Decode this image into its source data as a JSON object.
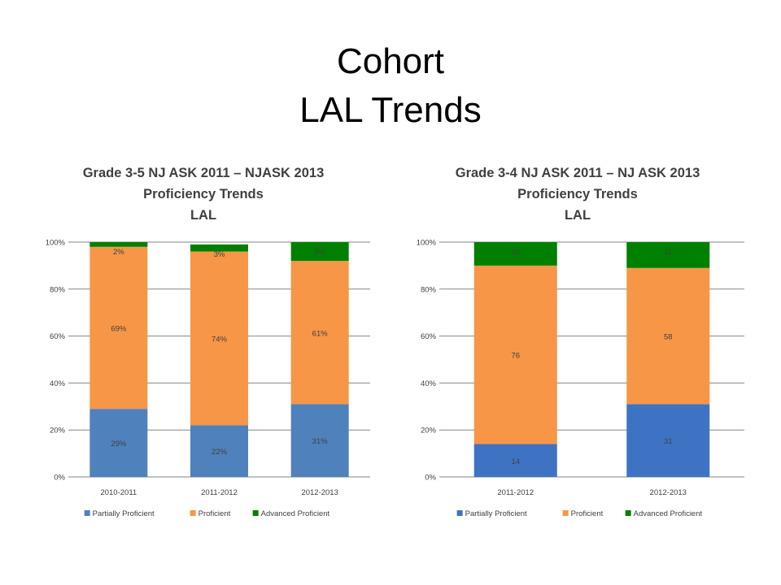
{
  "slide": {
    "title_line1": "Cohort",
    "title_line2": "LAL Trends"
  },
  "colors": {
    "partially_proficient": "#4F81BD",
    "partially_proficient_dark": "#3E73C4",
    "proficient": "#F79646",
    "advanced_proficient": "#008000",
    "gridline": "#868686",
    "text": "#404040"
  },
  "chart_data": [
    {
      "type": "bar",
      "stacked": true,
      "title_lines": [
        "Grade 3-5 NJ ASK 2011 – NJASK 2013",
        "Proficiency Trends",
        "LAL"
      ],
      "categories": [
        "2010-2011",
        "2011-2012",
        "2012-2013"
      ],
      "series": [
        {
          "name": "Partially Proficient",
          "values": [
            29,
            22,
            31
          ],
          "labels": [
            "29%",
            "22%",
            "31%"
          ]
        },
        {
          "name": "Proficient",
          "values": [
            69,
            74,
            61
          ],
          "labels": [
            "69%",
            "74%",
            "61%"
          ]
        },
        {
          "name": "Advanced Proficient",
          "values": [
            2,
            3,
            8
          ],
          "labels": [
            "2%",
            "3%",
            "8%"
          ]
        }
      ],
      "ylim": [
        0,
        100
      ],
      "yticks": [
        "0%",
        "20%",
        "40%",
        "60%",
        "80%",
        "100%"
      ],
      "grid": true,
      "legend_position": "bottom"
    },
    {
      "type": "bar",
      "stacked": true,
      "title_lines": [
        "Grade 3-4 NJ ASK 2011 – NJ ASK 2013",
        "Proficiency Trends",
        "LAL"
      ],
      "categories": [
        "2011-2012",
        "2012-2013"
      ],
      "series": [
        {
          "name": "Partially Proficient",
          "values": [
            14,
            31
          ],
          "labels": [
            "14",
            "31"
          ]
        },
        {
          "name": "Proficient",
          "values": [
            76,
            58
          ],
          "labels": [
            "76",
            "58"
          ]
        },
        {
          "name": "Advanced Proficient",
          "values": [
            10,
            11
          ],
          "labels": [
            "10",
            "11"
          ]
        }
      ],
      "ylim": [
        0,
        100
      ],
      "yticks": [
        "0%",
        "20%",
        "40%",
        "60%",
        "80%",
        "100%"
      ],
      "grid": true,
      "legend_position": "bottom"
    }
  ]
}
